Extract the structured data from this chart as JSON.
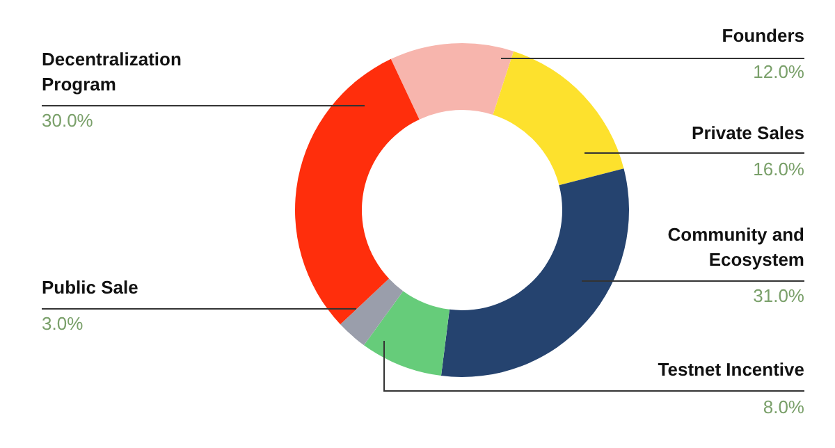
{
  "chart_data": {
    "type": "donut",
    "categories": [
      "Founders",
      "Private Sales",
      "Community and Ecosystem",
      "Testnet Incentive",
      "Public Sale",
      "Decentralization Program"
    ],
    "values": [
      12,
      16,
      31,
      8,
      3,
      30
    ],
    "value_labels": [
      "12.0%",
      "16.0%",
      "31.0%",
      "8.0%",
      "3.0%",
      "30.0%"
    ],
    "colors": [
      "#f7b5ad",
      "#fde12d",
      "#25436f",
      "#66cc7a",
      "#9a9eab",
      "#ff2e0c"
    ]
  }
}
